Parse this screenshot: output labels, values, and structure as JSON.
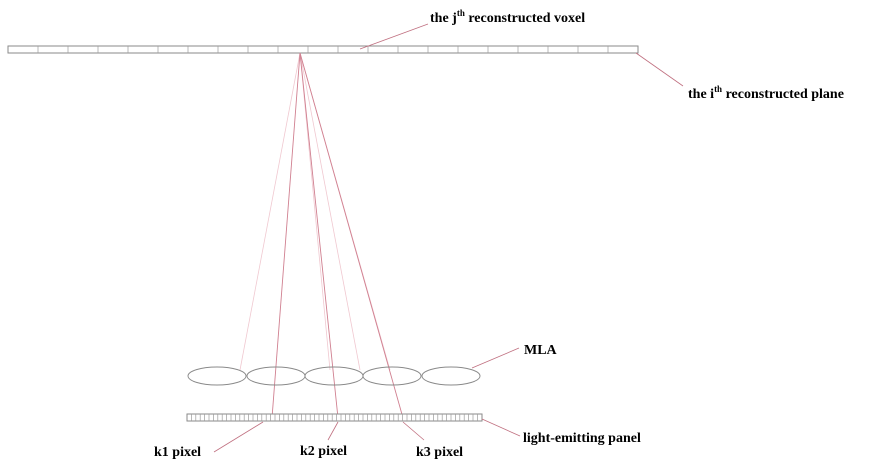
{
  "labels": {
    "voxel_prefix": "the j",
    "voxel_sup": "th",
    "voxel_suffix": " reconstructed voxel",
    "plane_prefix": "the i",
    "plane_sup": "th",
    "plane_suffix": " reconstructed plane",
    "mla": "MLA",
    "panel": "light-emitting panel",
    "k1": "k1 pixel",
    "k2": "k2 pixel",
    "k3": "k3 pixel"
  },
  "colors": {
    "outline": "#8a8a8a",
    "leader": "#c07080",
    "ray": "#d08090",
    "ray_faint": "#f0c0c8"
  }
}
